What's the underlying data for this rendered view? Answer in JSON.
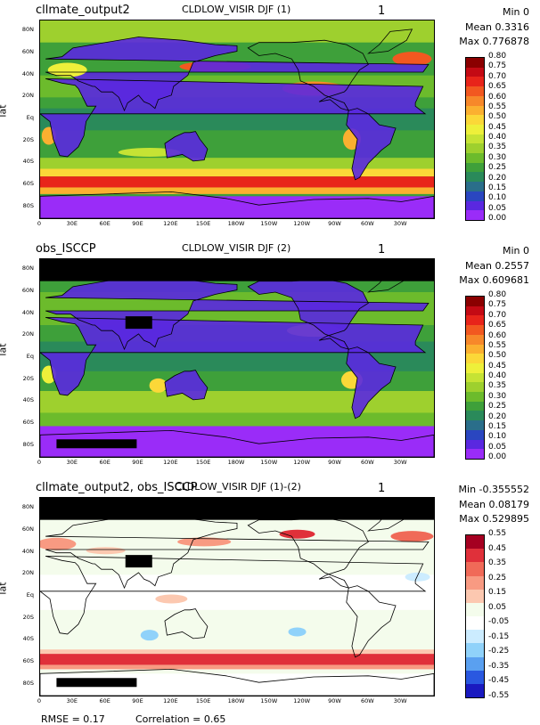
{
  "panels": [
    {
      "case": "cllmate_output2",
      "title": "CLDLOW_VISIR DJF (1)",
      "num": "1",
      "stats": [
        "Min 0",
        "Mean 0.3316",
        "Max 0.776878"
      ],
      "levels": [
        "0.80",
        "0.75",
        "0.70",
        "0.65",
        "0.60",
        "0.55",
        "0.50",
        "0.45",
        "0.40",
        "0.35",
        "0.30",
        "0.25",
        "0.20",
        "0.15",
        "0.10",
        "0.05",
        "0.00"
      ],
      "colors": [
        "#8b0000",
        "#c40a14",
        "#e8241a",
        "#f25820",
        "#f7882a",
        "#fbb030",
        "#fbd838",
        "#eef03a",
        "#c6e334",
        "#9ed02e",
        "#6cbb2c",
        "#3ea03a",
        "#2a8a5a",
        "#2a6e8a",
        "#2a46c0",
        "#5a28e0",
        "#9a2cf8"
      ],
      "ylabel": "lat"
    },
    {
      "case": "obs_ISCCP",
      "title": "CLDLOW_VISIR DJF (2)",
      "num": "1",
      "stats": [
        "Min 0",
        "Mean 0.2557",
        "Max 0.609681"
      ],
      "levels": [
        "0.80",
        "0.75",
        "0.70",
        "0.65",
        "0.60",
        "0.55",
        "0.50",
        "0.45",
        "0.40",
        "0.35",
        "0.30",
        "0.25",
        "0.20",
        "0.15",
        "0.10",
        "0.05",
        "0.00"
      ],
      "colors": [
        "#8b0000",
        "#c40a14",
        "#e8241a",
        "#f25820",
        "#f7882a",
        "#fbb030",
        "#fbd838",
        "#eef03a",
        "#c6e334",
        "#9ed02e",
        "#6cbb2c",
        "#3ea03a",
        "#2a8a5a",
        "#2a6e8a",
        "#2a46c0",
        "#5a28e0",
        "#9a2cf8"
      ],
      "ylabel": "lat"
    },
    {
      "case": "cllmate_output2, obs_ISCCP",
      "title": "CLDLOW_VISIR DJF (1)-(2)",
      "num": "1",
      "stats": [
        "Min -0.355552",
        "Mean 0.08179",
        "Max 0.529895"
      ],
      "levels": [
        "0.55",
        "0.45",
        "0.35",
        "0.25",
        "0.15",
        "0.05",
        "-0.05",
        "-0.15",
        "-0.25",
        "-0.35",
        "-0.45",
        "-0.55"
      ],
      "colors": [
        "#a50021",
        "#e0303a",
        "#f06a58",
        "#f89a82",
        "#fcc8b0",
        "#f4fcec",
        "#ffffff",
        "#ccecff",
        "#90d2fa",
        "#5aa0f0",
        "#2a58e0",
        "#1a1ac0"
      ],
      "ylabel": "lat"
    }
  ],
  "axes": {
    "lat_ticks": [
      "80N",
      "60N",
      "40N",
      "20N",
      "Eq",
      "20S",
      "40S",
      "60S",
      "80S"
    ],
    "lon_ticks": [
      "0",
      "30E",
      "60E",
      "90E",
      "120E",
      "150E",
      "180W",
      "150W",
      "120W",
      "90W",
      "60W",
      "30W"
    ]
  },
  "footer": {
    "rmse": "RMSE = 0.17",
    "correlation": "Correlation = 0.65"
  },
  "chart_data": [
    {
      "type": "heatmap",
      "title": "CLDLOW_VISIR DJF (1)",
      "subtitle": "cllmate_output2",
      "ylabel": "lat",
      "xlim": [
        0,
        360
      ],
      "ylim": [
        -90,
        90
      ],
      "colorbar_range": [
        0.0,
        0.8
      ],
      "min": 0,
      "mean": 0.3316,
      "max": 0.776878
    },
    {
      "type": "heatmap",
      "title": "CLDLOW_VISIR DJF (2)",
      "subtitle": "obs_ISCCP",
      "ylabel": "lat",
      "xlim": [
        0,
        360
      ],
      "ylim": [
        -90,
        90
      ],
      "colorbar_range": [
        0.0,
        0.8
      ],
      "min": 0,
      "mean": 0.2557,
      "max": 0.609681
    },
    {
      "type": "heatmap",
      "title": "CLDLOW_VISIR DJF (1)-(2)",
      "subtitle": "cllmate_output2, obs_ISCCP",
      "ylabel": "lat",
      "xlim": [
        0,
        360
      ],
      "ylim": [
        -90,
        90
      ],
      "colorbar_range": [
        -0.55,
        0.55
      ],
      "min": -0.355552,
      "mean": 0.08179,
      "max": 0.529895,
      "rmse": 0.17,
      "correlation": 0.65
    }
  ]
}
